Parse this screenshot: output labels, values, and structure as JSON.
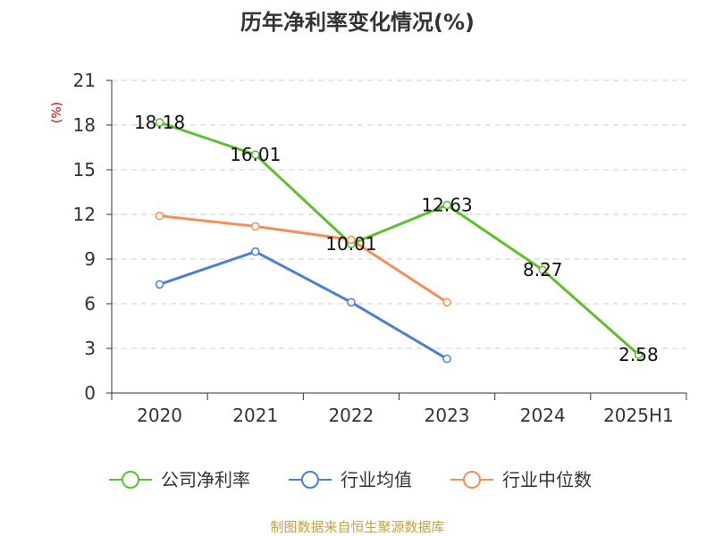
{
  "chart_data": {
    "type": "line",
    "title": "历年净利率变化情况(%)",
    "ylabel": "(%)",
    "categories": [
      "2020",
      "2021",
      "2022",
      "2023",
      "2024",
      "2025H1"
    ],
    "yticks": [
      "0",
      "3",
      "6",
      "9",
      "12",
      "15",
      "18",
      "21"
    ],
    "ylim": [
      0,
      21
    ],
    "grid": true,
    "legend_position": "bottom",
    "series": [
      {
        "name": "公司净利率",
        "color": "#5cc02a",
        "values": [
          18.18,
          16.01,
          10.01,
          12.63,
          8.27,
          2.58
        ],
        "labels": [
          "18.18",
          "16.01",
          "10.01",
          "12.63",
          "8.27",
          "2.58"
        ]
      },
      {
        "name": "行业均值",
        "color": "#4a7fd9",
        "values": [
          7.3,
          9.5,
          6.1,
          2.3,
          null,
          null
        ]
      },
      {
        "name": "行业中位数",
        "color": "#f58e55",
        "values": [
          11.9,
          11.2,
          10.3,
          6.1,
          null,
          null
        ]
      }
    ]
  },
  "footer": {
    "source": "制图数据来自恒生聚源数据库"
  }
}
